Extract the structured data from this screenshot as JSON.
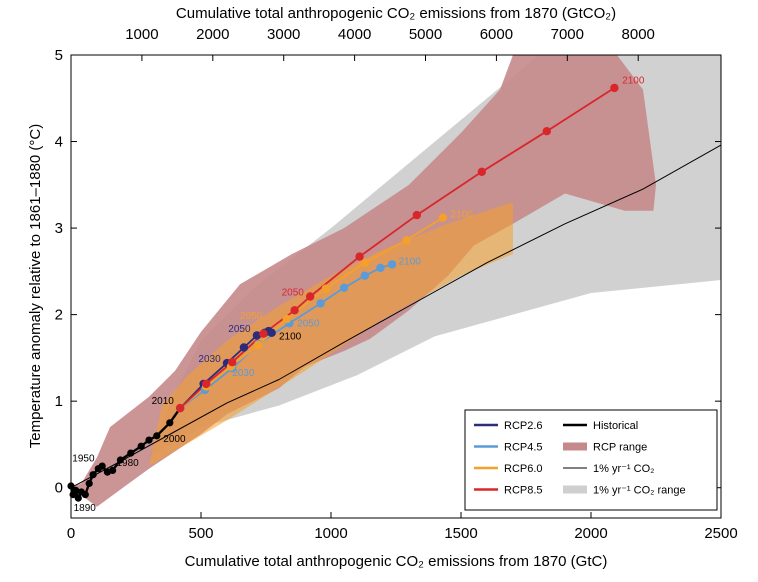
{
  "chart_data": {
    "type": "line",
    "xlabel": "Cumulative total anthropogenic CO₂ emissions from 1870 (GtC)",
    "x2label": "Cumulative total anthropogenic CO₂ emissions from 1870 (GtCO₂)",
    "ylabel": "Temperature anomaly relative to 1861–1880 (°C)",
    "xlim": [
      0,
      2500
    ],
    "ylim": [
      -0.35,
      5
    ],
    "x_ticks": [
      0,
      500,
      1000,
      1500,
      2000,
      2500
    ],
    "x2_ticks": [
      1000,
      2000,
      3000,
      4000,
      5000,
      6000,
      7000,
      8000
    ],
    "y_ticks": [
      0,
      1,
      2,
      3,
      4,
      5
    ],
    "gtc_to_gtco2": 3.667,
    "grid": false,
    "legend_position": "bottom-right",
    "colors": {
      "rcp26": "#2b2c7c",
      "rcp45": "#5b9bd8",
      "rcp60": "#f5a02a",
      "rcp85": "#d9262b",
      "historical": "#000000",
      "rcp_range": "#c5898b",
      "one_pct": "#000000",
      "one_pct_range": "#cfcfcf"
    },
    "legend": [
      {
        "key": "rcp26",
        "label": "RCP2.6",
        "kind": "line"
      },
      {
        "key": "historical",
        "label": "Historical",
        "kind": "line"
      },
      {
        "key": "rcp45",
        "label": "RCP4.5",
        "kind": "line"
      },
      {
        "key": "rcp_range",
        "label": "RCP range",
        "kind": "patch"
      },
      {
        "key": "rcp60",
        "label": "RCP6.0",
        "kind": "line"
      },
      {
        "key": "one_pct",
        "label": "1% yr⁻¹ CO₂",
        "kind": "thin"
      },
      {
        "key": "rcp85",
        "label": "RCP8.5",
        "kind": "line"
      },
      {
        "key": "one_pct_range",
        "label": "1% yr⁻¹ CO₂ range",
        "kind": "patch"
      }
    ],
    "series": [
      {
        "key": "historical",
        "name": "Historical",
        "points": [
          [
            0,
            0.02
          ],
          [
            8,
            -0.08
          ],
          [
            18,
            -0.03
          ],
          [
            28,
            -0.12
          ],
          [
            40,
            -0.05
          ],
          [
            55,
            -0.08
          ],
          [
            70,
            0.05
          ],
          [
            85,
            0.15
          ],
          [
            105,
            0.22
          ],
          [
            120,
            0.25
          ],
          [
            140,
            0.18
          ],
          [
            160,
            0.2
          ],
          [
            190,
            0.32
          ],
          [
            230,
            0.4
          ],
          [
            270,
            0.48
          ],
          [
            300,
            0.55
          ],
          [
            330,
            0.6
          ],
          [
            380,
            0.75
          ],
          [
            420,
            0.92
          ]
        ]
      },
      {
        "key": "rcp26",
        "name": "RCP2.6",
        "points": [
          [
            420,
            0.92
          ],
          [
            510,
            1.2
          ],
          [
            600,
            1.44
          ],
          [
            665,
            1.62
          ],
          [
            715,
            1.76
          ],
          [
            745,
            1.79
          ],
          [
            760,
            1.81
          ],
          [
            772,
            1.79
          ]
        ]
      },
      {
        "key": "rcp45",
        "name": "RCP4.5",
        "points": [
          [
            420,
            0.92
          ],
          [
            515,
            1.13
          ],
          [
            620,
            1.38
          ],
          [
            720,
            1.66
          ],
          [
            840,
            1.9
          ],
          [
            960,
            2.13
          ],
          [
            1050,
            2.31
          ],
          [
            1130,
            2.45
          ],
          [
            1190,
            2.54
          ],
          [
            1235,
            2.58
          ]
        ]
      },
      {
        "key": "rcp60",
        "name": "RCP6.0",
        "points": [
          [
            420,
            0.92
          ],
          [
            520,
            1.17
          ],
          [
            615,
            1.4
          ],
          [
            720,
            1.65
          ],
          [
            830,
            1.95
          ],
          [
            980,
            2.3
          ],
          [
            1130,
            2.6
          ],
          [
            1290,
            2.86
          ],
          [
            1430,
            3.12
          ]
        ]
      },
      {
        "key": "rcp85",
        "name": "RCP8.5",
        "points": [
          [
            420,
            0.92
          ],
          [
            520,
            1.2
          ],
          [
            620,
            1.45
          ],
          [
            740,
            1.78
          ],
          [
            860,
            2.05
          ],
          [
            920,
            2.21
          ],
          [
            1110,
            2.67
          ],
          [
            1330,
            3.15
          ],
          [
            1580,
            3.65
          ],
          [
            1830,
            4.12
          ],
          [
            2090,
            4.62
          ]
        ]
      },
      {
        "key": "one_pct",
        "name": "1% yr⁻¹ CO₂",
        "points": [
          [
            0,
            0
          ],
          [
            200,
            0.32
          ],
          [
            400,
            0.65
          ],
          [
            600,
            0.98
          ],
          [
            800,
            1.25
          ],
          [
            1050,
            1.68
          ],
          [
            1300,
            2.1
          ],
          [
            1600,
            2.6
          ],
          [
            1900,
            3.05
          ],
          [
            2200,
            3.45
          ],
          [
            2500,
            3.96
          ]
        ]
      }
    ],
    "rcp_range_polygon": [
      [
        100,
        -0.22
      ],
      [
        300,
        0.22
      ],
      [
        500,
        0.62
      ],
      [
        600,
        0.85
      ],
      [
        700,
        1.0
      ],
      [
        800,
        1.15
      ],
      [
        900,
        1.4
      ],
      [
        1050,
        1.58
      ],
      [
        1150,
        1.72
      ],
      [
        1300,
        2.05
      ],
      [
        1450,
        2.45
      ],
      [
        1550,
        2.8
      ],
      [
        1700,
        3.05
      ],
      [
        1900,
        3.4
      ],
      [
        2130,
        3.2
      ],
      [
        2240,
        3.2
      ],
      [
        2250,
        3.5
      ],
      [
        2200,
        4.6
      ],
      [
        2100,
        5.0
      ],
      [
        1700,
        5.0
      ],
      [
        1650,
        4.6
      ],
      [
        1500,
        4.1
      ],
      [
        1300,
        3.5
      ],
      [
        1050,
        3.0
      ],
      [
        850,
        2.7
      ],
      [
        650,
        2.35
      ],
      [
        500,
        1.8
      ],
      [
        400,
        1.35
      ],
      [
        300,
        1.05
      ],
      [
        150,
        0.7
      ],
      [
        100,
        0.35
      ],
      [
        40,
        0.05
      ],
      [
        0,
        0.0
      ]
    ],
    "one_pct_range_polygon": [
      [
        300,
        0.35
      ],
      [
        500,
        0.7
      ],
      [
        800,
        0.95
      ],
      [
        1100,
        1.3
      ],
      [
        1400,
        1.75
      ],
      [
        1700,
        2.0
      ],
      [
        2000,
        2.25
      ],
      [
        2500,
        2.4
      ],
      [
        2500,
        5.0
      ],
      [
        1800,
        5.0
      ],
      [
        1400,
        4.0
      ],
      [
        1000,
        3.0
      ],
      [
        700,
        2.3
      ],
      [
        500,
        1.7
      ],
      [
        400,
        1.1
      ],
      [
        350,
        0.75
      ]
    ],
    "annotations": [
      {
        "text": "1950",
        "x": 5,
        "y": 0.3,
        "color": "#000000"
      },
      {
        "text": "1980",
        "x": 175,
        "y": 0.25,
        "color": "#000000"
      },
      {
        "text": "1890",
        "x": 10,
        "y": -0.27,
        "color": "#000000"
      },
      {
        "text": "2000",
        "x": 355,
        "y": 0.53,
        "color": "#000000"
      },
      {
        "text": "2010",
        "x": 310,
        "y": 0.97,
        "color": "#000000"
      },
      {
        "text": "2030",
        "x": 490,
        "y": 1.45,
        "color": "#2b2c7c"
      },
      {
        "text": "2030",
        "x": 620,
        "y": 1.29,
        "color": "#5b9bd8"
      },
      {
        "text": "2050",
        "x": 605,
        "y": 1.8,
        "color": "#2b2c7c"
      },
      {
        "text": "2050",
        "x": 650,
        "y": 1.95,
        "color": "#f5a02a"
      },
      {
        "text": "2050",
        "x": 870,
        "y": 1.86,
        "color": "#5b9bd8"
      },
      {
        "text": "2050",
        "x": 810,
        "y": 2.22,
        "color": "#d9262b"
      },
      {
        "text": "2100",
        "x": 800,
        "y": 1.71,
        "color": "#000000"
      },
      {
        "text": "2100",
        "x": 1260,
        "y": 2.58,
        "color": "#5b9bd8"
      },
      {
        "text": "2100",
        "x": 1460,
        "y": 3.12,
        "color": "#f5a02a"
      },
      {
        "text": "2100",
        "x": 2120,
        "y": 4.67,
        "color": "#d9262b"
      }
    ]
  }
}
